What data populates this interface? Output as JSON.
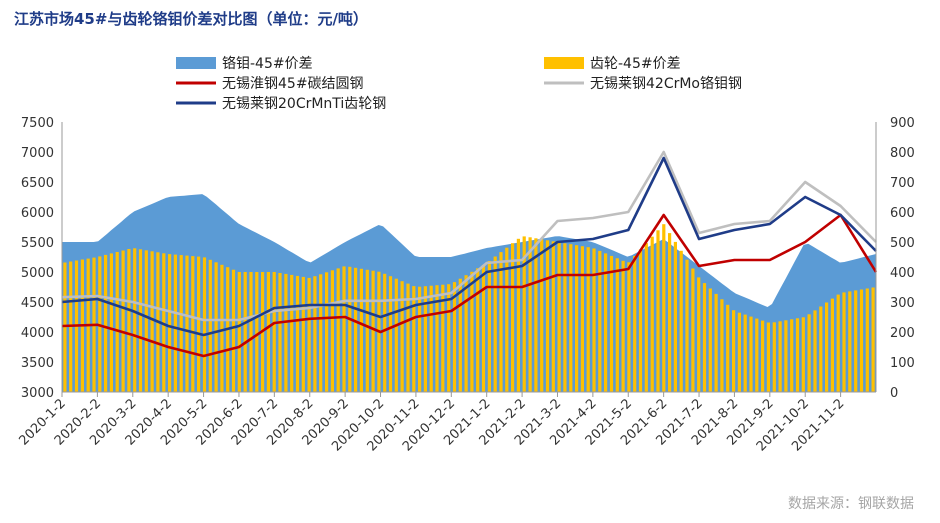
{
  "title": "江苏市场45#与齿轮铬钼价差对比图（单位：元/吨）",
  "source": "数据来源：钢联数据",
  "chart_data": {
    "type": "bar+area+line",
    "y_left": {
      "min": 3000,
      "max": 7500,
      "ticks": [
        "3000",
        "3500",
        "4000",
        "4500",
        "5000",
        "5500",
        "6000",
        "6500",
        "7000",
        "7500"
      ]
    },
    "y_right": {
      "min": 0,
      "max": 900,
      "ticks": [
        "0",
        "100",
        "200",
        "300",
        "400",
        "500",
        "600",
        "700",
        "800",
        "900"
      ]
    },
    "x_ticks": [
      "2020-1-2",
      "2020-2-2",
      "2020-3-2",
      "2020-4-2",
      "2020-5-2",
      "2020-6-2",
      "2020-7-2",
      "2020-8-2",
      "2020-9-2",
      "2020-10-2",
      "2020-11-2",
      "2020-12-2",
      "2021-1-2",
      "2021-2-2",
      "2021-3-2",
      "2021-4-2",
      "2021-5-2",
      "2021-6-2",
      "2021-7-2",
      "2021-8-2",
      "2021-9-2",
      "2021-10-2",
      "2021-11-2"
    ],
    "legend": [
      {
        "name": "铬钼-45#价差",
        "type": "area",
        "color": "#5b9bd5"
      },
      {
        "name": "齿轮-45#价差",
        "type": "bar",
        "color": "#ffc000"
      },
      {
        "name": "无锡淮钢45#碳结圆钢",
        "type": "line",
        "color": "#c00000"
      },
      {
        "name": "无锡莱钢42CrMo铬钼钢",
        "type": "line",
        "color": "#bfbfbf"
      },
      {
        "name": "无锡莱钢20CrMnTi齿轮钢",
        "type": "line",
        "color": "#1f3c88"
      }
    ],
    "x_index": [
      0,
      1,
      2,
      3,
      4,
      5,
      6,
      7,
      8,
      9,
      10,
      11,
      12,
      13,
      14,
      15,
      16,
      17,
      18,
      19,
      20,
      21,
      22,
      23
    ],
    "series": [
      {
        "name": "无锡淮钢45#碳结圆钢",
        "axis": "left",
        "values": [
          4100,
          4120,
          3950,
          3750,
          3600,
          3750,
          4150,
          4220,
          4250,
          4000,
          4250,
          4350,
          4750,
          4750,
          4950,
          4950,
          5050,
          5950,
          5100,
          5200,
          5200,
          5500,
          5950,
          5000
        ]
      },
      {
        "name": "无锡莱钢42CrMo铬钼钢",
        "axis": "left",
        "values": [
          4580,
          4600,
          4500,
          4350,
          4200,
          4200,
          4350,
          4400,
          4520,
          4520,
          4550,
          4650,
          5150,
          5200,
          5850,
          5900,
          6000,
          7000,
          5650,
          5800,
          5850,
          6500,
          6100,
          5500
        ]
      },
      {
        "name": "无锡莱钢20CrMnTi齿轮钢",
        "axis": "left",
        "values": [
          4500,
          4550,
          4350,
          4100,
          3950,
          4100,
          4400,
          4450,
          4450,
          4250,
          4450,
          4550,
          5000,
          5100,
          5500,
          5550,
          5700,
          6900,
          5550,
          5700,
          5800,
          6250,
          5950,
          5350
        ]
      },
      {
        "name": "铬钼-45#价差",
        "axis": "right",
        "values": [
          500,
          500,
          600,
          650,
          660,
          560,
          500,
          430,
          500,
          560,
          450,
          450,
          480,
          500,
          520,
          500,
          450,
          510,
          420,
          330,
          280,
          500,
          430,
          460
        ]
      },
      {
        "name": "齿轮-45#价差",
        "axis": "right",
        "values": [
          430,
          450,
          480,
          460,
          450,
          400,
          400,
          380,
          420,
          400,
          350,
          360,
          430,
          520,
          500,
          480,
          430,
          560,
          380,
          270,
          230,
          250,
          330,
          350
        ]
      }
    ]
  }
}
